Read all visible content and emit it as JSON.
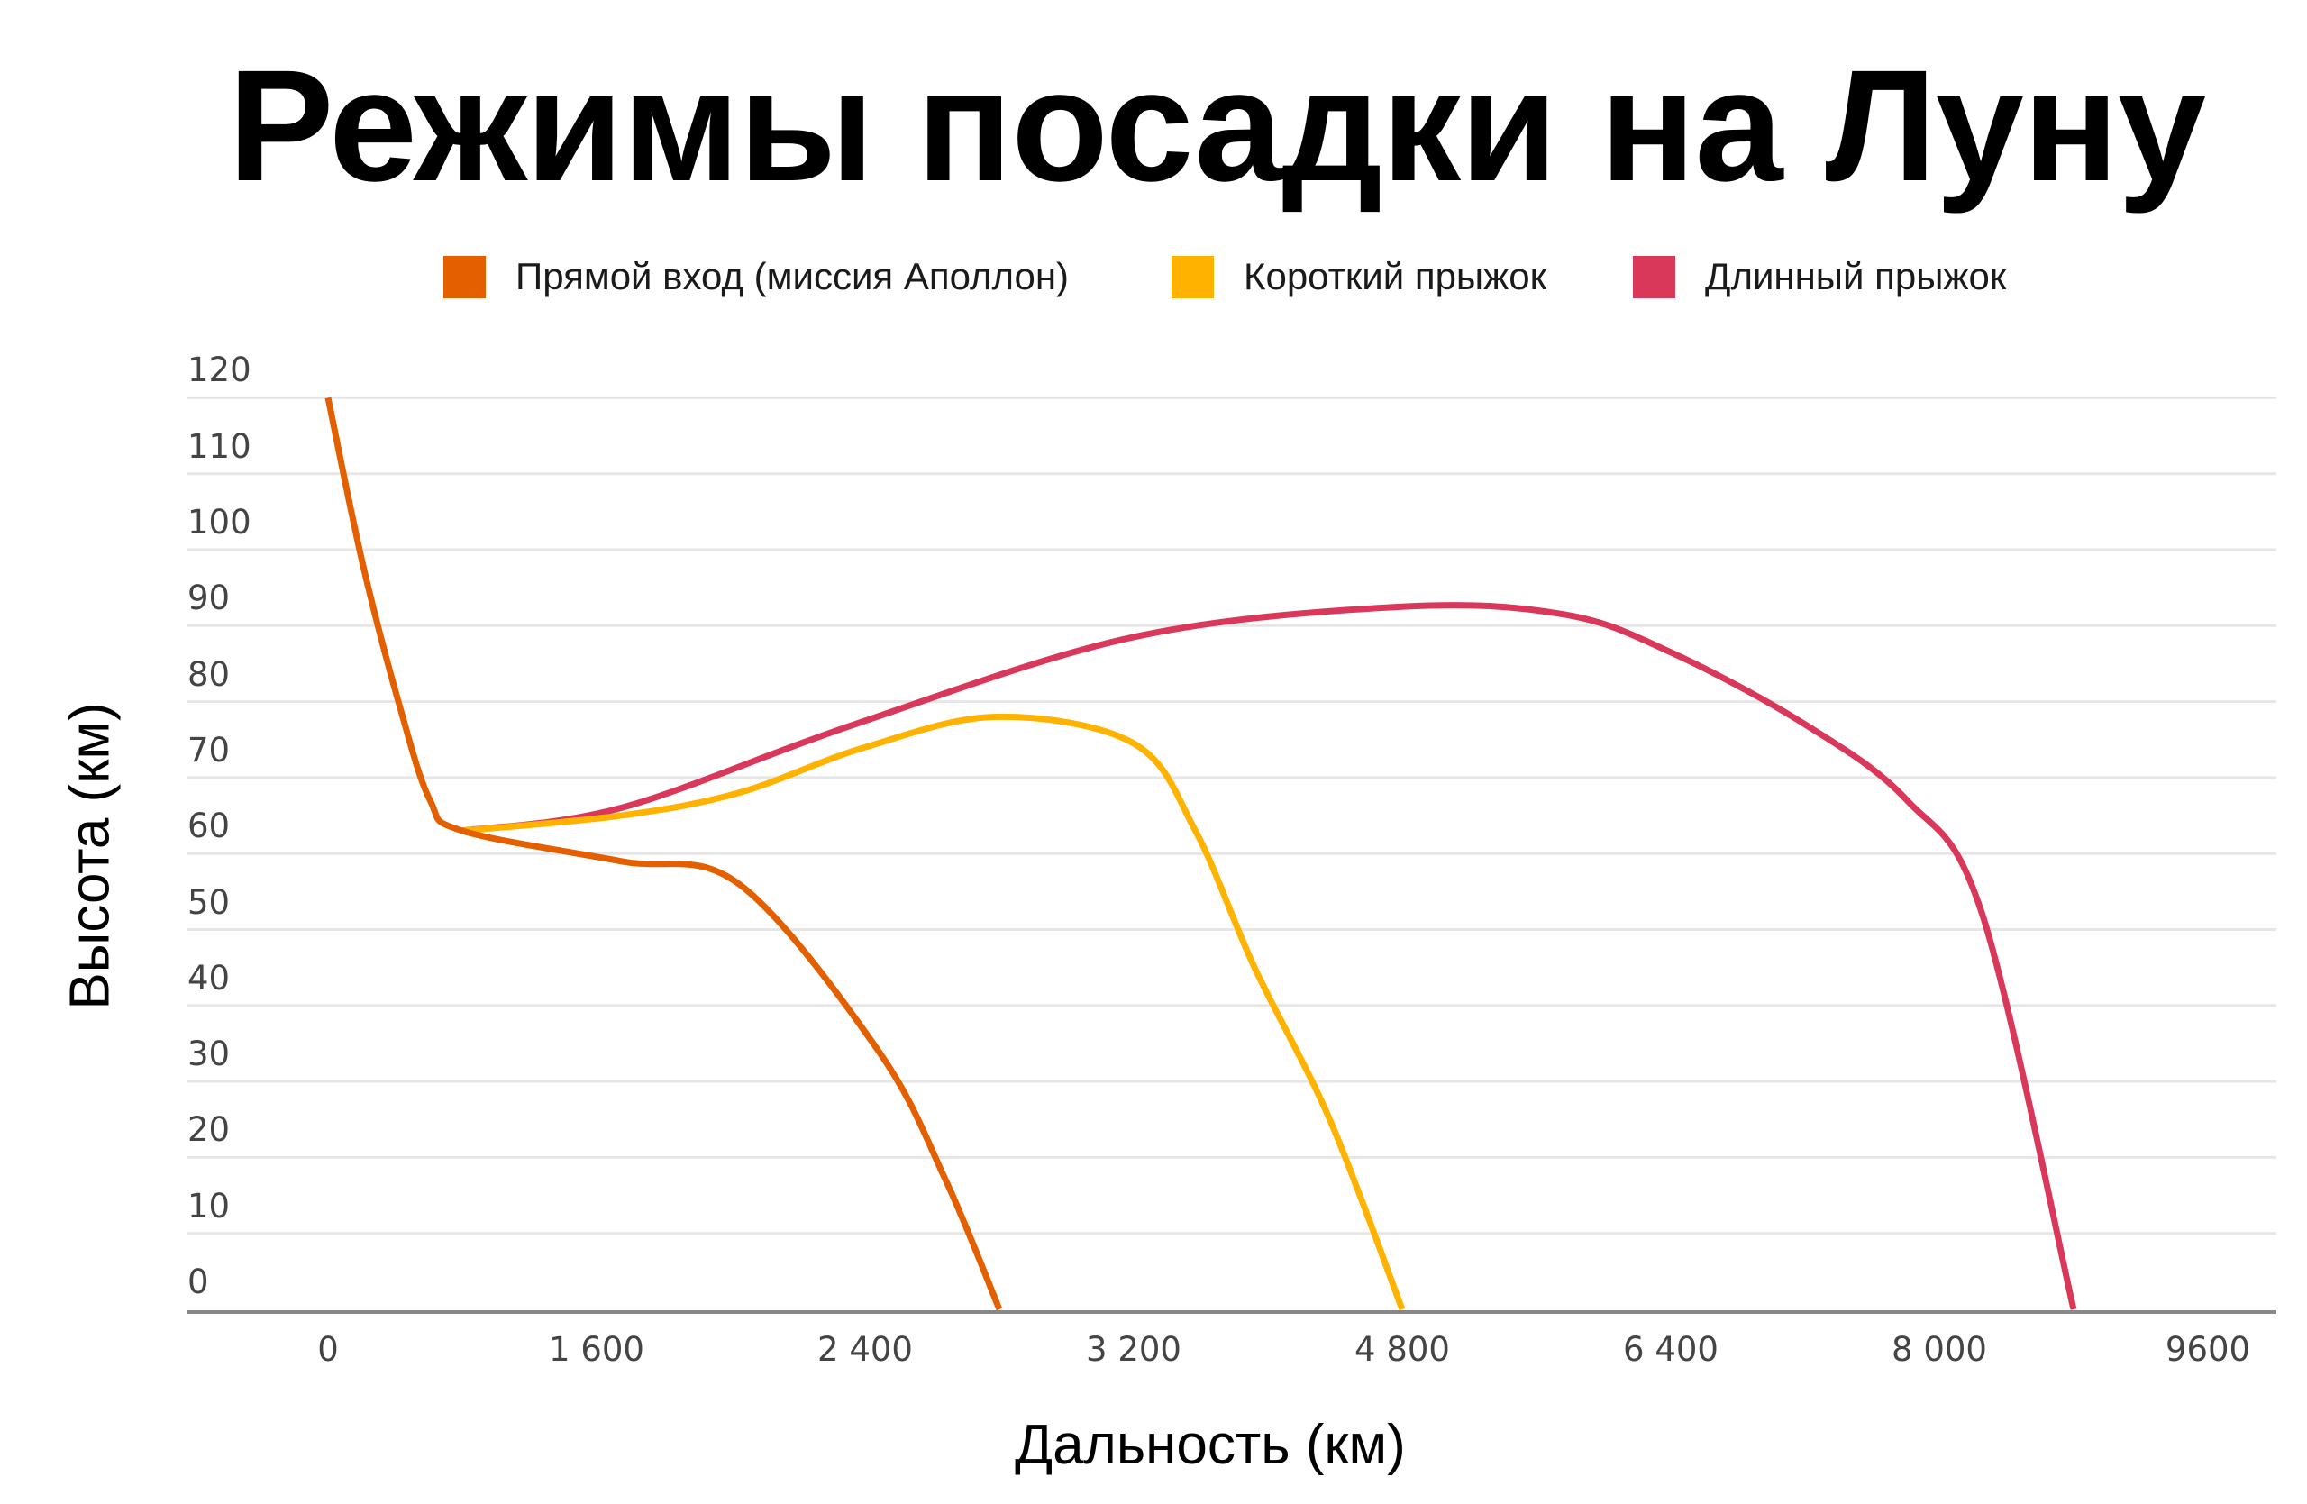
{
  "title": "Режимы посадки на Луну",
  "legend": [
    {
      "label": "Прямой вход (миссия Аполлон)",
      "color": "#E35F00"
    },
    {
      "label": "Короткий прыжок",
      "color": "#FFB300"
    },
    {
      "label": "Длинный прыжок",
      "color": "#D9385B"
    }
  ],
  "axes": {
    "ylabel": "Высота (км)",
    "xlabel": "Дальность (км)",
    "yticks": [
      "120",
      "110",
      "100",
      "90",
      "80",
      "70",
      "60",
      "50",
      "40",
      "30",
      "20",
      "10",
      "0"
    ],
    "xticks": [
      "0",
      "1 600",
      "2 400",
      "3 200",
      "4 800",
      "6 400",
      "8 000",
      "9600"
    ]
  },
  "chart_data": {
    "type": "line",
    "title": "Режимы посадки на Луну",
    "xlabel": "Дальность (км)",
    "ylabel": "Высота (км)",
    "ylim": [
      0,
      120
    ],
    "x_tick_labels": [
      "0",
      "1 600",
      "2 400",
      "3 200",
      "4 800",
      "6 400",
      "8 000",
      "9600"
    ],
    "x_note": "x values are positional tick indices (0 = '0', 1 = '1 600', ... 7 = '9600'); tick labels are evenly spaced",
    "grid": true,
    "legend_position": "top",
    "series": [
      {
        "name": "Прямой вход (миссия Аполлон)",
        "color": "#E35F00",
        "points": [
          [
            0,
            120
          ],
          [
            0.13,
            98
          ],
          [
            0.27,
            79
          ],
          [
            0.38,
            67
          ],
          [
            0.5,
            63
          ],
          [
            1.09,
            59
          ],
          [
            1.53,
            56
          ],
          [
            2.05,
            34
          ],
          [
            2.3,
            17
          ],
          [
            2.5,
            0
          ]
        ]
      },
      {
        "name": "Короткий прыжок",
        "color": "#FFB300",
        "points": [
          [
            0.5,
            63
          ],
          [
            1.09,
            65
          ],
          [
            1.53,
            68
          ],
          [
            2.0,
            74
          ],
          [
            2.49,
            78
          ],
          [
            3.0,
            74.5
          ],
          [
            3.23,
            63
          ],
          [
            3.45,
            45
          ],
          [
            3.73,
            25
          ],
          [
            4.0,
            0
          ]
        ]
      },
      {
        "name": "Длинный прыжок",
        "color": "#D9385B",
        "points": [
          [
            0.5,
            63
          ],
          [
            1.09,
            66
          ],
          [
            1.96,
            77
          ],
          [
            3.0,
            88.5
          ],
          [
            4.0,
            92.5
          ],
          [
            4.6,
            91.5
          ],
          [
            5.0,
            86.5
          ],
          [
            5.5,
            77
          ],
          [
            5.88,
            67
          ],
          [
            6.16,
            52
          ],
          [
            6.5,
            0
          ]
        ]
      }
    ]
  }
}
